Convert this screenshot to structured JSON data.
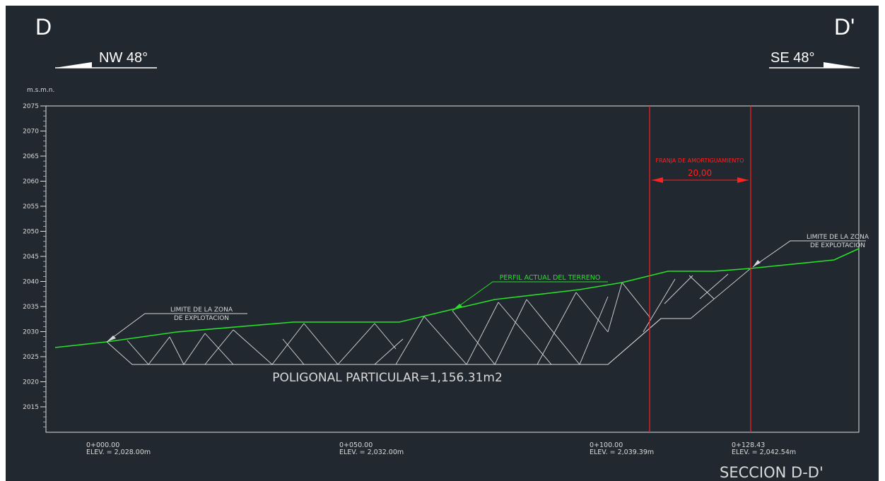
{
  "header": {
    "left_label": "D",
    "right_label": "D'",
    "left_direction": "NW 48°",
    "right_direction": "SE 48°"
  },
  "axis": {
    "unit_label": "m.s.m.n.",
    "ticks": [
      "2075",
      "2070",
      "2065",
      "2060",
      "2055",
      "2050",
      "2045",
      "2040",
      "2035",
      "2030",
      "2025",
      "2020",
      "2015"
    ]
  },
  "labels": {
    "zona_left_1": "LIMITE DE LA ZONA",
    "zona_left_2": "DE EXPLOTACION",
    "zona_right_1": "LIMITE DE LA ZONA",
    "zona_right_2": "DE EXPLOTACION",
    "perfil": "PERFIL ACTUAL DEL TERRENO",
    "franja": "FRANJA DE AMORTIGUAMIENTO",
    "franja_value": "20,00",
    "poligonal": "POLIGONAL PARTICULAR=1,156.31m2",
    "section_title": "SECCION D-D'"
  },
  "stations": [
    {
      "station": "0+000.00",
      "elev": "ELEV. = 2,028.00m"
    },
    {
      "station": "0+050.00",
      "elev": "ELEV. = 2,032.00m"
    },
    {
      "station": "0+100.00",
      "elev": "ELEV. = 2,039.39m"
    },
    {
      "station": "0+128.43",
      "elev": "ELEV. = 2,042.54m"
    }
  ],
  "colors": {
    "background": "#212830",
    "terrain": "#28e028",
    "buffer": "#ff2020",
    "lines": "#e0e0e0"
  }
}
